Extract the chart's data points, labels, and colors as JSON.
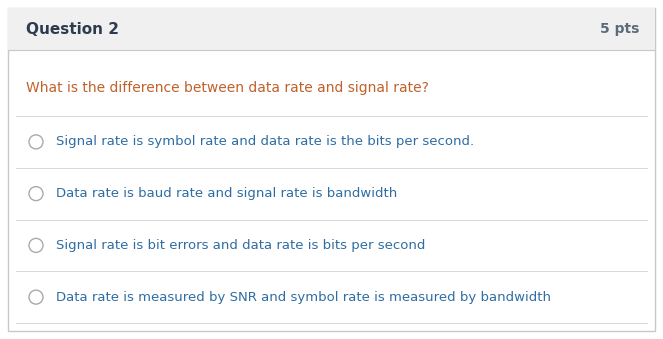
{
  "header_text": "Question 2",
  "pts_text": "5 pts",
  "question_text": "What is the difference between data rate and signal rate?",
  "options": [
    "Signal rate is symbol rate and data rate is the bits per second.",
    "Data rate is baud rate and signal rate is bandwidth",
    "Signal rate is bit errors and data rate is bits per second",
    "Data rate is measured by SNR and symbol rate is measured by bandwidth"
  ],
  "header_bg": "#f0f0f0",
  "body_bg": "#ffffff",
  "outer_border_color": "#c8c8c8",
  "header_border_color": "#c8c8c8",
  "header_text_color": "#2d3b4e",
  "pts_color": "#5b6a7a",
  "question_color": "#c0612b",
  "option_color": "#2e6da4",
  "circle_edge_color": "#aaaaaa",
  "divider_color": "#d8d8d8",
  "fig_width": 6.63,
  "fig_height": 3.39,
  "dpi": 100,
  "header_font_size": 11,
  "pts_font_size": 10,
  "question_font_size": 10,
  "option_font_size": 9.5
}
